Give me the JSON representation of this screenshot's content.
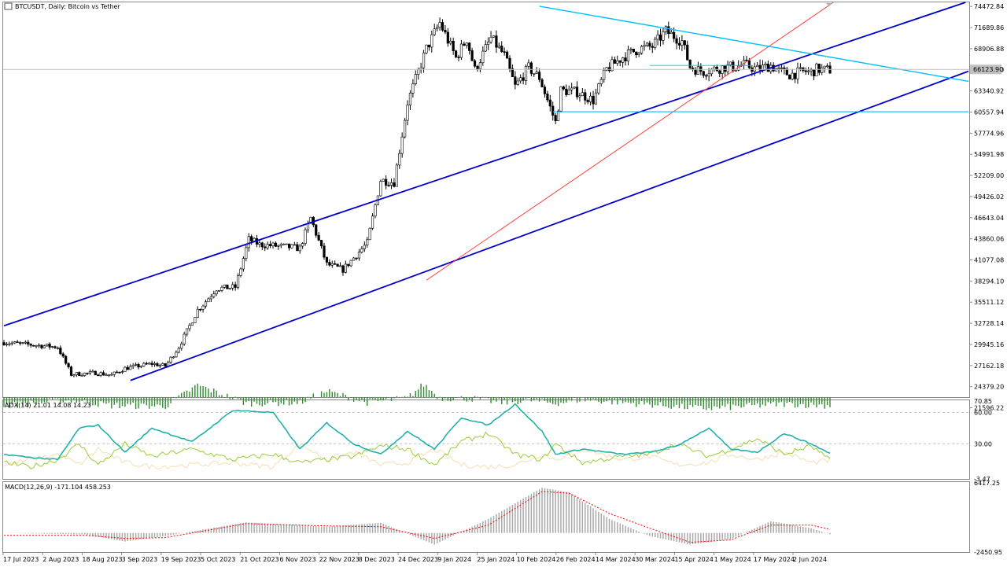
{
  "header": {
    "title": "BTCUSDT, Daily: Bitcoin vs Tether"
  },
  "colors": {
    "background": "#ffffff",
    "candle": "#000000",
    "volume": "#2e8b2e",
    "channel": "#0000cd",
    "resistance": "#00bfff",
    "trend_red": "#ff3030",
    "adx_main": "#20b2aa",
    "adx_plus": "#9acd32",
    "adx_minus": "#f5deb3",
    "macd_hist": "#a9a9a9",
    "macd_signal": "#ff0000"
  },
  "chart_data": [
    {
      "type": "candlestick",
      "title": "BTCUSDT, Daily: Bitcoin vs Tether",
      "ylim": [
        23000,
        74800
      ],
      "y_ticks": [
        "74472.84",
        "71689.86",
        "68906.88",
        "66123.90",
        "63340.92",
        "60557.94",
        "57774.96",
        "54991.98",
        "52209.00",
        "49426.02",
        "46643.04",
        "43860.06",
        "41077.08",
        "38294.10",
        "35511.12",
        "32728.14",
        "29945.16",
        "27162.18",
        "24379.20",
        "21596.22"
      ],
      "current_price_label": "66123.90",
      "x_ticks": [
        "17 Jul 2023",
        "2 Aug 2023",
        "18 Aug 2023",
        "3 Sep 2023",
        "19 Sep 2023",
        "5 Oct 2023",
        "21 Oct 2023",
        "6 Nov 2023",
        "22 Nov 2023",
        "8 Dec 2023",
        "24 Dec 2023",
        "9 Jan 2024",
        "25 Jan 2024",
        "10 Feb 2024",
        "26 Feb 2024",
        "14 Mar 2024",
        "30 Mar 2024",
        "15 Apr 2024",
        "1 May 2024",
        "17 May 2024",
        "2 Jun 2024"
      ],
      "price_keypoints": {
        "x_day_index": [
          0,
          20,
          25,
          34,
          40,
          45,
          55,
          60,
          65,
          72,
          74,
          79,
          86,
          91,
          95,
          105,
          110,
          114,
          120,
          126,
          135,
          140,
          145,
          150,
          157,
          162,
          168,
          172,
          175,
          181,
          186,
          190,
          195,
          199,
          205,
          207,
          213,
          219,
          224,
          230,
          236,
          241,
          246,
          252,
          255,
          258,
          260,
          264,
          268,
          272,
          275,
          280,
          285,
          288,
          292,
          298,
          300,
          302,
          305,
          307
        ],
        "close": [
          30200,
          29600,
          26000,
          26200,
          25900,
          26800,
          27400,
          27100,
          29600,
          34500,
          35200,
          37300,
          37500,
          43800,
          43100,
          42800,
          42600,
          46600,
          40500,
          39800,
          43300,
          51600,
          51300,
          61800,
          68900,
          72300,
          67700,
          70200,
          66100,
          70300,
          68000,
          63900,
          66400,
          65100,
          59200,
          63400,
          63200,
          62100,
          66200,
          67800,
          68900,
          69200,
          71200,
          69900,
          66500,
          66100,
          65900,
          66200,
          66500,
          66500,
          66800,
          66200,
          66700,
          66000,
          65500,
          65900,
          65800,
          66200,
          66100,
          66100
        ]
      },
      "volume_keypoints": {
        "x_day_index": [
          0,
          25,
          40,
          60,
          72,
          90,
          110,
          120,
          135,
          150,
          156,
          162,
          175,
          185,
          195,
          205,
          215,
          230,
          245,
          260,
          290,
          307
        ],
        "value": [
          21800,
          22500,
          21800,
          21700,
          24500,
          22100,
          22200,
          23700,
          22200,
          22800,
          24600,
          22800,
          22700,
          22200,
          22500,
          22100,
          22600,
          22200,
          21800,
          21400,
          22000,
          21800
        ]
      },
      "trendlines": [
        {
          "name": "channel-upper",
          "from": [
            0,
            32400
          ],
          "to": [
            307,
            69000
          ]
        },
        {
          "name": "channel-lower",
          "from": [
            47,
            25200
          ],
          "to": [
            307,
            59200
          ]
        },
        {
          "name": "red-trend",
          "from": [
            157,
            38400
          ],
          "to": [
            307,
            74700
          ]
        },
        {
          "name": "resistance-top",
          "from": [
            199,
            74500
          ],
          "to": [
            307,
            67800
          ]
        },
        {
          "name": "support-horizontal",
          "from": [
            204,
            60600
          ],
          "to": [
            307,
            60600
          ]
        },
        {
          "name": "range-top",
          "from": [
            240,
            66700
          ],
          "to": [
            278,
            66700
          ]
        }
      ]
    },
    {
      "type": "line",
      "title": "ADX(14) 21.01 14.08 14.23",
      "ylim": [
        -3.47,
        70.85
      ],
      "y_ticks": [
        "70.85",
        "60.00",
        "30.00",
        "-3.47"
      ],
      "series_keypoints": {
        "x_day_index": [
          0,
          10,
          20,
          28,
          35,
          45,
          55,
          70,
          85,
          100,
          110,
          120,
          130,
          140,
          150,
          160,
          170,
          180,
          190,
          200,
          205,
          215,
          230,
          240,
          250,
          262,
          270,
          280,
          290,
          300,
          307
        ],
        "adx": [
          20,
          17,
          15,
          45,
          48,
          22,
          45,
          32,
          62,
          60,
          25,
          50,
          30,
          20,
          42,
          25,
          55,
          48,
          68,
          42,
          20,
          25,
          20,
          22,
          28,
          45,
          25,
          22,
          40,
          30,
          21
        ],
        "plus_di": [
          12,
          8,
          15,
          30,
          10,
          30,
          18,
          25,
          15,
          20,
          12,
          15,
          18,
          28,
          25,
          10,
          32,
          40,
          20,
          15,
          30,
          12,
          18,
          20,
          30,
          18,
          25,
          35,
          20,
          28,
          14
        ],
        "minus_di": [
          10,
          15,
          20,
          10,
          25,
          12,
          8,
          10,
          12,
          8,
          30,
          15,
          22,
          10,
          12,
          25,
          10,
          8,
          10,
          20,
          15,
          25,
          15,
          18,
          10,
          12,
          20,
          15,
          22,
          12,
          14
        ]
      }
    },
    {
      "type": "bar",
      "title": "MACD(12,26,9) -171.104 458.253",
      "ylim": [
        -2450.95,
        6417.25
      ],
      "y_ticks": [
        "6417.25",
        "-2450.95"
      ],
      "series_keypoints": {
        "x_day_index": [
          0,
          30,
          45,
          60,
          90,
          120,
          140,
          160,
          180,
          200,
          210,
          225,
          240,
          255,
          270,
          285,
          300,
          307
        ],
        "macd": [
          0,
          -200,
          -1100,
          -400,
          1350,
          800,
          1300,
          -1500,
          1800,
          5800,
          5200,
          1800,
          -400,
          -1500,
          -800,
          1500,
          600,
          -171
        ],
        "signal": [
          -300,
          -300,
          -700,
          -600,
          1200,
          900,
          800,
          -700,
          1000,
          5300,
          5100,
          2500,
          600,
          -1200,
          -900,
          1000,
          1000,
          458
        ]
      }
    }
  ]
}
